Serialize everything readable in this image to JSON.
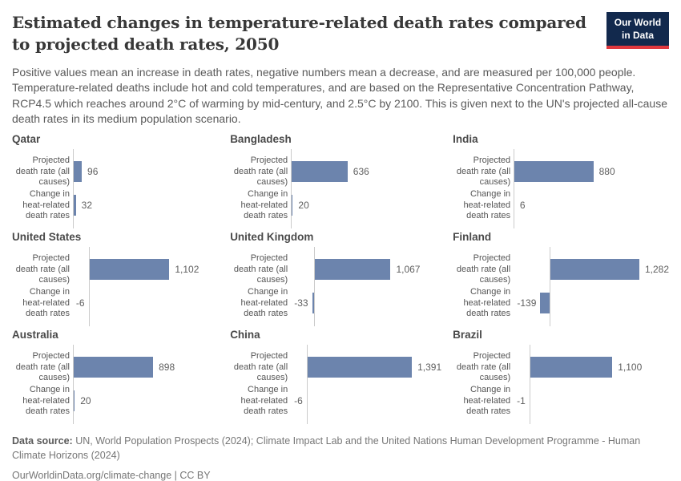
{
  "header": {
    "title": "Estimated changes in temperature-related death rates compared to projected death rates, 2050",
    "subtitle": "Positive values mean an increase in death rates, negative numbers mean a decrease, and are measured per 100,000 people. Temperature-related deaths include hot and cold temperatures, and are based on the Representative Concentration Pathway, RCP4.5 which reaches around 2°C of warming by mid-century, and 2.5°C by 2100. This is given next to the UN's projected all-cause death rates in its medium population scenario.",
    "logo": {
      "line1": "Our World",
      "line2": "in Data"
    }
  },
  "chart_data": {
    "type": "bar",
    "orientation": "horizontal",
    "grid": "off",
    "legend": "none",
    "bar_color": "#6c84ad",
    "bar_categories": [
      "Projected death rate (all causes)",
      "Change in heat-related death rates"
    ],
    "facets": [
      {
        "country": "Qatar",
        "values": [
          96,
          32
        ],
        "labels": [
          "96",
          "32"
        ]
      },
      {
        "country": "Bangladesh",
        "values": [
          636,
          20
        ],
        "labels": [
          "636",
          "20"
        ]
      },
      {
        "country": "India",
        "values": [
          880,
          6
        ],
        "labels": [
          "880",
          "6"
        ]
      },
      {
        "country": "United States",
        "values": [
          1102,
          -6
        ],
        "labels": [
          "1,102",
          "-6"
        ]
      },
      {
        "country": "United Kingdom",
        "values": [
          1067,
          -33
        ],
        "labels": [
          "1,067",
          "-33"
        ]
      },
      {
        "country": "Finland",
        "values": [
          1282,
          -139
        ],
        "labels": [
          "1,282",
          "-139"
        ]
      },
      {
        "country": "Australia",
        "values": [
          898,
          20
        ],
        "labels": [
          "898",
          "20"
        ]
      },
      {
        "country": "China",
        "values": [
          1391,
          -6
        ],
        "labels": [
          "1,391",
          "-6"
        ]
      },
      {
        "country": "Brazil",
        "values": [
          1100,
          -1
        ],
        "labels": [
          "1,100",
          "-1"
        ]
      }
    ]
  },
  "footer": {
    "source_label": "Data source:",
    "source_text": "UN, World Population Prospects (2024); Climate Impact Lab and the United Nations Human Development Programme - Human Climate Horizons (2024)",
    "link": "OurWorldinData.org/climate-change",
    "separator": " | ",
    "license": "CC BY"
  },
  "colors": {
    "bar": "#6c84ad",
    "axis": "#cbcbcb",
    "logo_bg": "#12294d",
    "logo_accent": "#e0383e"
  }
}
